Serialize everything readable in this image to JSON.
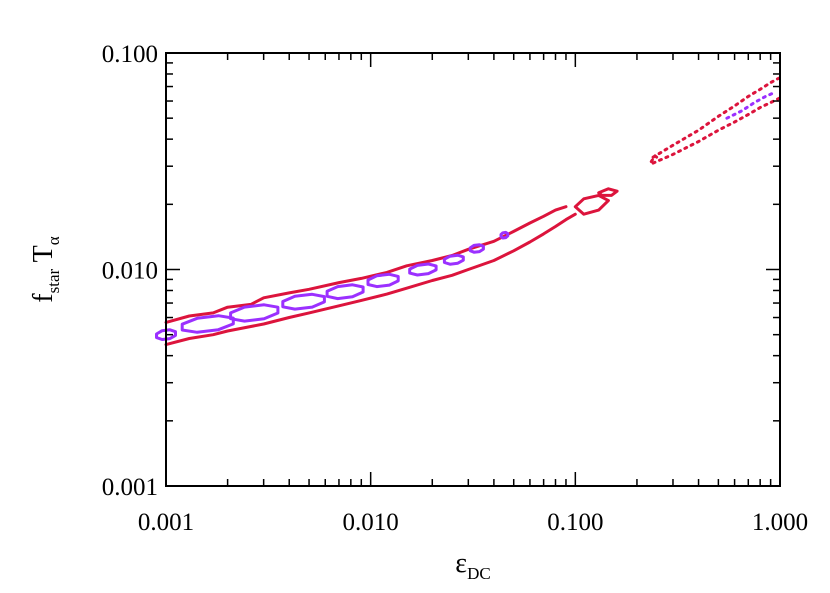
{
  "chart_data": {
    "type": "contour",
    "title": "",
    "xlabel": {
      "main": "ε",
      "sub": "DC"
    },
    "ylabel": {
      "main": "f",
      "sub": "star",
      "main2": " T",
      "sub2": "α"
    },
    "x_scale": "log",
    "y_scale": "log",
    "xlim": [
      0.001,
      1.0
    ],
    "ylim": [
      0.001,
      0.1
    ],
    "x_ticks": [
      {
        "value": 0.001,
        "label": "0.001"
      },
      {
        "value": 0.01,
        "label": "0.010"
      },
      {
        "value": 0.1,
        "label": "0.100"
      },
      {
        "value": 1.0,
        "label": "1.000"
      }
    ],
    "y_ticks": [
      {
        "value": 0.001,
        "label": "0.001"
      },
      {
        "value": 0.01,
        "label": "0.010"
      },
      {
        "value": 0.1,
        "label": "0.100"
      }
    ],
    "grid": false,
    "colors": {
      "outer": "#dc143c",
      "inner": "#9b30ff",
      "axes": "#000000"
    },
    "series": [
      {
        "role": "outer-solid-upper",
        "style": "solid",
        "color": "#dc143c",
        "points": [
          [
            0.001,
            0.0057
          ],
          [
            0.0013,
            0.0061
          ],
          [
            0.0017,
            0.0063
          ],
          [
            0.002,
            0.0067
          ],
          [
            0.0026,
            0.0069
          ],
          [
            0.003,
            0.0074
          ],
          [
            0.004,
            0.0078
          ],
          [
            0.005,
            0.0081
          ],
          [
            0.007,
            0.0087
          ],
          [
            0.009,
            0.0091
          ],
          [
            0.012,
            0.0097
          ],
          [
            0.015,
            0.0104
          ],
          [
            0.02,
            0.011
          ],
          [
            0.025,
            0.0116
          ],
          [
            0.03,
            0.0124
          ],
          [
            0.04,
            0.0135
          ],
          [
            0.05,
            0.015
          ],
          [
            0.06,
            0.0164
          ],
          [
            0.07,
            0.0176
          ],
          [
            0.08,
            0.0188
          ],
          [
            0.09,
            0.0195
          ]
        ]
      },
      {
        "role": "outer-solid-lower",
        "style": "solid",
        "color": "#dc143c",
        "points": [
          [
            0.001,
            0.0045
          ],
          [
            0.0013,
            0.0048
          ],
          [
            0.0017,
            0.005
          ],
          [
            0.002,
            0.0052
          ],
          [
            0.003,
            0.0056
          ],
          [
            0.004,
            0.006
          ],
          [
            0.005,
            0.0063
          ],
          [
            0.007,
            0.0068
          ],
          [
            0.009,
            0.0072
          ],
          [
            0.012,
            0.0077
          ],
          [
            0.015,
            0.0082
          ],
          [
            0.02,
            0.0089
          ],
          [
            0.025,
            0.0094
          ],
          [
            0.03,
            0.01
          ],
          [
            0.04,
            0.011
          ],
          [
            0.05,
            0.0122
          ],
          [
            0.06,
            0.0134
          ],
          [
            0.07,
            0.0146
          ],
          [
            0.08,
            0.0158
          ],
          [
            0.09,
            0.017
          ],
          [
            0.1,
            0.018
          ]
        ]
      },
      {
        "role": "outer-solid-island-1",
        "style": "solid",
        "color": "#dc143c",
        "closed": true,
        "points": [
          [
            0.1,
            0.0195
          ],
          [
            0.11,
            0.0212
          ],
          [
            0.13,
            0.022
          ],
          [
            0.145,
            0.0208
          ],
          [
            0.13,
            0.0188
          ],
          [
            0.11,
            0.018
          ]
        ]
      },
      {
        "role": "outer-solid-island-2",
        "style": "solid",
        "color": "#dc143c",
        "closed": true,
        "points": [
          [
            0.13,
            0.0226
          ],
          [
            0.145,
            0.0236
          ],
          [
            0.16,
            0.023
          ],
          [
            0.15,
            0.022
          ],
          [
            0.135,
            0.022
          ]
        ]
      },
      {
        "role": "outer-dotted-upper",
        "style": "dotted",
        "color": "#dc143c",
        "points": [
          [
            0.24,
            0.033
          ],
          [
            0.3,
            0.0375
          ],
          [
            0.4,
            0.044
          ],
          [
            0.5,
            0.051
          ],
          [
            0.6,
            0.057
          ],
          [
            0.7,
            0.063
          ],
          [
            0.8,
            0.068
          ],
          [
            0.9,
            0.073
          ],
          [
            1.0,
            0.077
          ]
        ]
      },
      {
        "role": "outer-dotted-lower",
        "style": "dotted",
        "color": "#dc143c",
        "points": [
          [
            0.24,
            0.031
          ],
          [
            0.3,
            0.034
          ],
          [
            0.4,
            0.039
          ],
          [
            0.5,
            0.044
          ],
          [
            0.6,
            0.048
          ],
          [
            0.7,
            0.052
          ],
          [
            0.8,
            0.056
          ],
          [
            0.9,
            0.059
          ],
          [
            1.0,
            0.062
          ]
        ]
      },
      {
        "role": "outer-dotted-fragment",
        "style": "dotted",
        "color": "#dc143c",
        "points": [
          [
            0.235,
            0.0315
          ],
          [
            0.245,
            0.0335
          ],
          [
            0.255,
            0.0325
          ]
        ]
      },
      {
        "role": "inner-dotted",
        "style": "dotted",
        "color": "#9b30ff",
        "points": [
          [
            0.55,
            0.05
          ],
          [
            0.65,
            0.054
          ],
          [
            0.75,
            0.059
          ],
          [
            0.85,
            0.063
          ],
          [
            0.95,
            0.066
          ]
        ]
      },
      {
        "role": "inner-blobs",
        "style": "solid",
        "color": "#9b30ff",
        "blobs": [
          {
            "cx": 0.001,
            "cy": 0.005,
            "rx": 0.05,
            "ry": 0.022
          },
          {
            "cx": 0.0016,
            "cy": 0.0056,
            "rx": 0.135,
            "ry": 0.035
          },
          {
            "cx": 0.0027,
            "cy": 0.0063,
            "rx": 0.125,
            "ry": 0.035
          },
          {
            "cx": 0.0047,
            "cy": 0.0071,
            "rx": 0.11,
            "ry": 0.032
          },
          {
            "cx": 0.0075,
            "cy": 0.0079,
            "rx": 0.095,
            "ry": 0.03
          },
          {
            "cx": 0.0115,
            "cy": 0.0089,
            "rx": 0.08,
            "ry": 0.027
          },
          {
            "cx": 0.018,
            "cy": 0.01,
            "rx": 0.07,
            "ry": 0.024
          },
          {
            "cx": 0.0255,
            "cy": 0.0111,
            "rx": 0.05,
            "ry": 0.02
          },
          {
            "cx": 0.033,
            "cy": 0.0125,
            "rx": 0.035,
            "ry": 0.017
          },
          {
            "cx": 0.045,
            "cy": 0.0144,
            "rx": 0.018,
            "ry": 0.013
          }
        ]
      }
    ]
  }
}
